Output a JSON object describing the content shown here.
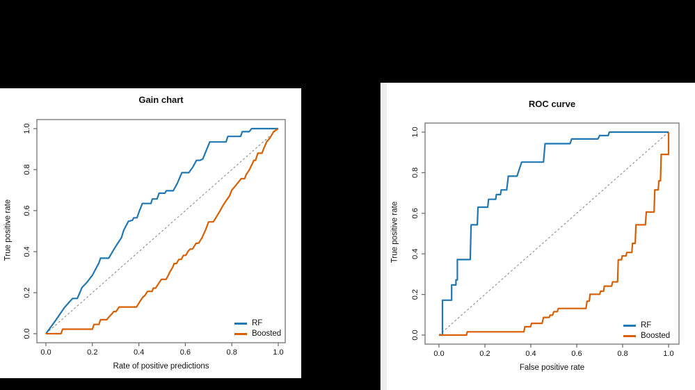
{
  "window": {
    "background_color": "#000000",
    "panel_color": "#ffffff",
    "axis_color": "#666666",
    "reference_line_color": "#808080"
  },
  "chart_data": [
    {
      "type": "line",
      "title": "Gain chart",
      "xlabel": "Rate of positive predictions",
      "ylabel": "True positive rate",
      "xlim": [
        0,
        1
      ],
      "ylim": [
        0,
        1
      ],
      "xticks": [
        "0.0",
        "0.2",
        "0.4",
        "0.6",
        "0.8",
        "1.0"
      ],
      "yticks": [
        "0.0",
        "0.2",
        "0.4",
        "0.6",
        "0.8",
        "1.0"
      ],
      "grid": false,
      "legend_position": "bottom-right",
      "reference_line": {
        "type": "diagonal-dashed",
        "from": [
          0,
          0
        ],
        "to": [
          1,
          1
        ]
      },
      "series": [
        {
          "name": "RF",
          "color": "#1f77b4",
          "points": [
            [
              0.0,
              0.0
            ],
            [
              0.04,
              0.062
            ],
            [
              0.08,
              0.128
            ],
            [
              0.115,
              0.172
            ],
            [
              0.135,
              0.172
            ],
            [
              0.148,
              0.205
            ],
            [
              0.155,
              0.225
            ],
            [
              0.175,
              0.248
            ],
            [
              0.2,
              0.285
            ],
            [
              0.228,
              0.345
            ],
            [
              0.235,
              0.368
            ],
            [
              0.27,
              0.368
            ],
            [
              0.3,
              0.425
            ],
            [
              0.325,
              0.468
            ],
            [
              0.335,
              0.505
            ],
            [
              0.355,
              0.548
            ],
            [
              0.372,
              0.553
            ],
            [
              0.378,
              0.565
            ],
            [
              0.392,
              0.565
            ],
            [
              0.402,
              0.598
            ],
            [
              0.415,
              0.635
            ],
            [
              0.452,
              0.635
            ],
            [
              0.458,
              0.657
            ],
            [
              0.478,
              0.657
            ],
            [
              0.487,
              0.685
            ],
            [
              0.512,
              0.685
            ],
            [
              0.518,
              0.697
            ],
            [
              0.548,
              0.697
            ],
            [
              0.565,
              0.732
            ],
            [
              0.585,
              0.785
            ],
            [
              0.615,
              0.785
            ],
            [
              0.632,
              0.812
            ],
            [
              0.648,
              0.845
            ],
            [
              0.662,
              0.845
            ],
            [
              0.675,
              0.852
            ],
            [
              0.705,
              0.935
            ],
            [
              0.775,
              0.935
            ],
            [
              0.783,
              0.962
            ],
            [
              0.838,
              0.962
            ],
            [
              0.845,
              0.985
            ],
            [
              0.875,
              0.985
            ],
            [
              0.885,
              1.0
            ],
            [
              1.0,
              1.0
            ]
          ]
        },
        {
          "name": "Boosted",
          "color": "#d95f02",
          "points": [
            [
              0.0,
              0.0
            ],
            [
              0.065,
              0.0
            ],
            [
              0.072,
              0.022
            ],
            [
              0.2,
              0.022
            ],
            [
              0.207,
              0.045
            ],
            [
              0.228,
              0.045
            ],
            [
              0.235,
              0.068
            ],
            [
              0.262,
              0.068
            ],
            [
              0.27,
              0.08
            ],
            [
              0.285,
              0.098
            ],
            [
              0.292,
              0.108
            ],
            [
              0.302,
              0.108
            ],
            [
              0.315,
              0.13
            ],
            [
              0.39,
              0.13
            ],
            [
              0.405,
              0.158
            ],
            [
              0.417,
              0.178
            ],
            [
              0.426,
              0.186
            ],
            [
              0.437,
              0.206
            ],
            [
              0.457,
              0.206
            ],
            [
              0.462,
              0.222
            ],
            [
              0.472,
              0.222
            ],
            [
              0.497,
              0.265
            ],
            [
              0.517,
              0.265
            ],
            [
              0.527,
              0.285
            ],
            [
              0.533,
              0.3
            ],
            [
              0.541,
              0.315
            ],
            [
              0.547,
              0.328
            ],
            [
              0.552,
              0.342
            ],
            [
              0.562,
              0.342
            ],
            [
              0.572,
              0.362
            ],
            [
              0.582,
              0.362
            ],
            [
              0.592,
              0.382
            ],
            [
              0.602,
              0.382
            ],
            [
              0.612,
              0.402
            ],
            [
              0.621,
              0.413
            ],
            [
              0.631,
              0.413
            ],
            [
              0.646,
              0.441
            ],
            [
              0.657,
              0.441
            ],
            [
              0.672,
              0.468
            ],
            [
              0.687,
              0.506
            ],
            [
              0.7,
              0.545
            ],
            [
              0.72,
              0.545
            ],
            [
              0.727,
              0.557
            ],
            [
              0.737,
              0.576
            ],
            [
              0.75,
              0.6
            ],
            [
              0.762,
              0.625
            ],
            [
              0.775,
              0.648
            ],
            [
              0.79,
              0.672
            ],
            [
              0.8,
              0.7
            ],
            [
              0.815,
              0.72
            ],
            [
              0.826,
              0.736
            ],
            [
              0.84,
              0.756
            ],
            [
              0.855,
              0.756
            ],
            [
              0.862,
              0.776
            ],
            [
              0.876,
              0.8
            ],
            [
              0.895,
              0.845
            ],
            [
              0.902,
              0.845
            ],
            [
              0.912,
              0.88
            ],
            [
              0.93,
              0.88
            ],
            [
              0.937,
              0.902
            ],
            [
              0.95,
              0.935
            ],
            [
              0.965,
              0.956
            ],
            [
              0.98,
              0.985
            ],
            [
              1.0,
              1.0
            ]
          ]
        }
      ]
    },
    {
      "type": "line",
      "title": "ROC curve",
      "xlabel": "False positive rate",
      "ylabel": "True positive rate",
      "xlim": [
        0,
        1
      ],
      "ylim": [
        0,
        1
      ],
      "xticks": [
        "0.0",
        "0.2",
        "0.4",
        "0.6",
        "0.8",
        "1.0"
      ],
      "yticks": [
        "0.0",
        "0.2",
        "0.4",
        "0.6",
        "0.8",
        "1.0"
      ],
      "grid": false,
      "legend_position": "bottom-right",
      "reference_line": {
        "type": "diagonal-dashed",
        "from": [
          0,
          0
        ],
        "to": [
          1,
          1
        ]
      },
      "series": [
        {
          "name": "RF",
          "color": "#1f77b4",
          "points": [
            [
              0.0,
              0.0
            ],
            [
              0.015,
              0.0
            ],
            [
              0.015,
              0.172
            ],
            [
              0.055,
              0.172
            ],
            [
              0.055,
              0.247
            ],
            [
              0.074,
              0.247
            ],
            [
              0.074,
              0.272
            ],
            [
              0.08,
              0.272
            ],
            [
              0.08,
              0.372
            ],
            [
              0.136,
              0.372
            ],
            [
              0.14,
              0.543
            ],
            [
              0.167,
              0.543
            ],
            [
              0.17,
              0.63
            ],
            [
              0.212,
              0.63
            ],
            [
              0.216,
              0.669
            ],
            [
              0.247,
              0.669
            ],
            [
              0.25,
              0.692
            ],
            [
              0.268,
              0.692
            ],
            [
              0.271,
              0.715
            ],
            [
              0.295,
              0.715
            ],
            [
              0.302,
              0.783
            ],
            [
              0.34,
              0.783
            ],
            [
              0.36,
              0.852
            ],
            [
              0.455,
              0.852
            ],
            [
              0.462,
              0.943
            ],
            [
              0.571,
              0.943
            ],
            [
              0.578,
              0.966
            ],
            [
              0.692,
              0.966
            ],
            [
              0.7,
              0.983
            ],
            [
              0.737,
              0.983
            ],
            [
              0.742,
              1.0
            ],
            [
              1.0,
              1.0
            ]
          ]
        },
        {
          "name": "Boosted",
          "color": "#d95f02",
          "points": [
            [
              0.0,
              0.0
            ],
            [
              0.12,
              0.0
            ],
            [
              0.123,
              0.016
            ],
            [
              0.37,
              0.016
            ],
            [
              0.374,
              0.041
            ],
            [
              0.399,
              0.041
            ],
            [
              0.403,
              0.058
            ],
            [
              0.449,
              0.058
            ],
            [
              0.455,
              0.087
            ],
            [
              0.48,
              0.087
            ],
            [
              0.484,
              0.098
            ],
            [
              0.495,
              0.098
            ],
            [
              0.5,
              0.115
            ],
            [
              0.515,
              0.115
            ],
            [
              0.52,
              0.131
            ],
            [
              0.64,
              0.131
            ],
            [
              0.645,
              0.167
            ],
            [
              0.655,
              0.167
            ],
            [
              0.658,
              0.201
            ],
            [
              0.7,
              0.201
            ],
            [
              0.704,
              0.216
            ],
            [
              0.717,
              0.216
            ],
            [
              0.72,
              0.241
            ],
            [
              0.752,
              0.241
            ],
            [
              0.756,
              0.262
            ],
            [
              0.778,
              0.262
            ],
            [
              0.781,
              0.371
            ],
            [
              0.795,
              0.371
            ],
            [
              0.798,
              0.39
            ],
            [
              0.815,
              0.39
            ],
            [
              0.818,
              0.407
            ],
            [
              0.84,
              0.407
            ],
            [
              0.843,
              0.452
            ],
            [
              0.855,
              0.452
            ],
            [
              0.858,
              0.543
            ],
            [
              0.899,
              0.543
            ],
            [
              0.903,
              0.606
            ],
            [
              0.937,
              0.606
            ],
            [
              0.94,
              0.715
            ],
            [
              0.955,
              0.715
            ],
            [
              0.958,
              0.76
            ],
            [
              0.965,
              0.76
            ],
            [
              0.968,
              0.89
            ],
            [
              1.0,
              0.89
            ],
            [
              1.0,
              1.0
            ]
          ]
        }
      ]
    }
  ]
}
